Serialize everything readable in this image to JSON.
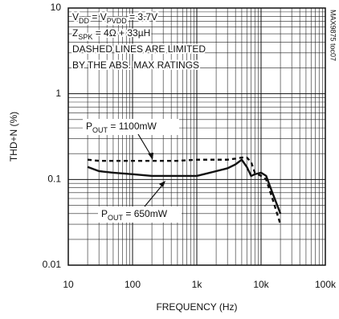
{
  "chart_data": {
    "type": "line",
    "side_note": "MAX9875 toc07",
    "x_label": "FREQUENCY (Hz)",
    "y_label": "THD+N (%)",
    "log_x": true,
    "log_y": true,
    "grid": true,
    "xlim": [
      10,
      100000
    ],
    "xticks": [
      10,
      100,
      {
        "value": 1000,
        "label": "1k"
      },
      {
        "value": 10000,
        "label": "10k"
      },
      {
        "value": 100000,
        "label": "100k"
      }
    ],
    "ylim": [
      0.01,
      10
    ],
    "yticks": [
      0.01,
      0.1,
      1,
      10
    ],
    "annotations": [
      [
        "V",
        "DD",
        " = V",
        "PVDD",
        " = 3.7V"
      ],
      [
        "Z",
        "SPK",
        " = 4Ω + 33µH"
      ],
      [
        "DASHED LINES ARE LIMITED"
      ],
      [
        "BY THE ABS. MAX RATINGS"
      ]
    ],
    "x": [
      20,
      30,
      50,
      100,
      200,
      500,
      1000,
      2000,
      3000,
      4000,
      5000,
      6000,
      7000,
      8000,
      10000,
      12000,
      15000,
      20000
    ],
    "series": [
      {
        "label": [
          "P",
          "OUT",
          " = 650mW"
        ],
        "color": "#111111",
        "dashed": false,
        "values": [
          0.14,
          0.125,
          0.12,
          0.115,
          0.11,
          0.11,
          0.11,
          0.125,
          0.135,
          0.15,
          0.17,
          0.14,
          0.11,
          0.115,
          0.12,
          0.11,
          0.07,
          0.04
        ]
      },
      {
        "label": [
          "P",
          "OUT",
          " = 1100mW"
        ],
        "color": "#111111",
        "dashed": true,
        "values": [
          0.17,
          0.165,
          0.165,
          0.165,
          0.165,
          0.165,
          0.17,
          0.17,
          0.17,
          0.175,
          0.18,
          0.18,
          0.16,
          0.12,
          0.11,
          0.1,
          0.06,
          0.03
        ]
      }
    ]
  }
}
